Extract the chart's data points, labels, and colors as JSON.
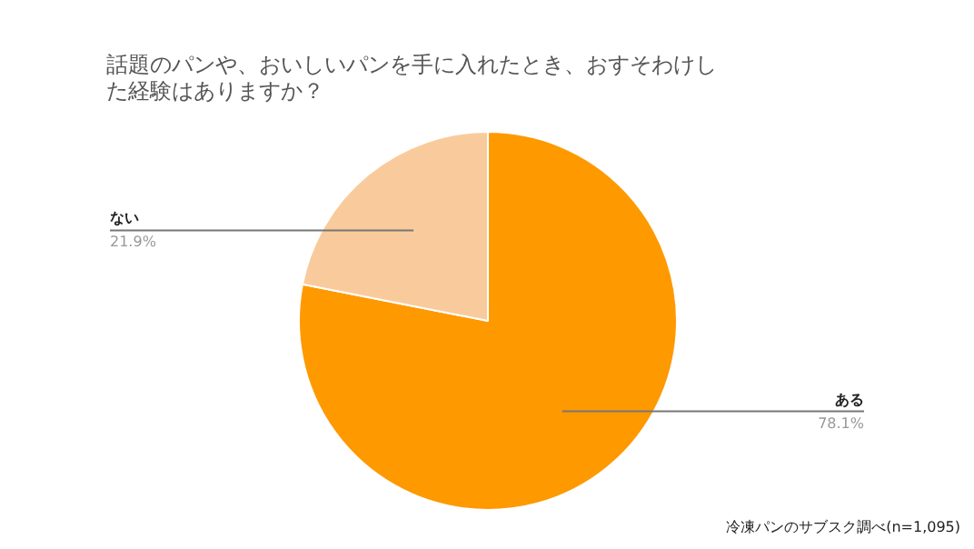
{
  "chart_data": {
    "type": "pie",
    "title": "話題のパンや、おいしいパンを手に入れたとき、おすそわけした経験はありますか？",
    "categories": [
      "ある",
      "ない"
    ],
    "values": [
      78.1,
      21.9
    ],
    "colors": [
      "#ff9900",
      "#f9cb9c"
    ],
    "value_labels": [
      "78.1%",
      "21.9%"
    ],
    "annotations": [
      "冷凍パンのサブスク調べ(n=1,095)"
    ]
  }
}
